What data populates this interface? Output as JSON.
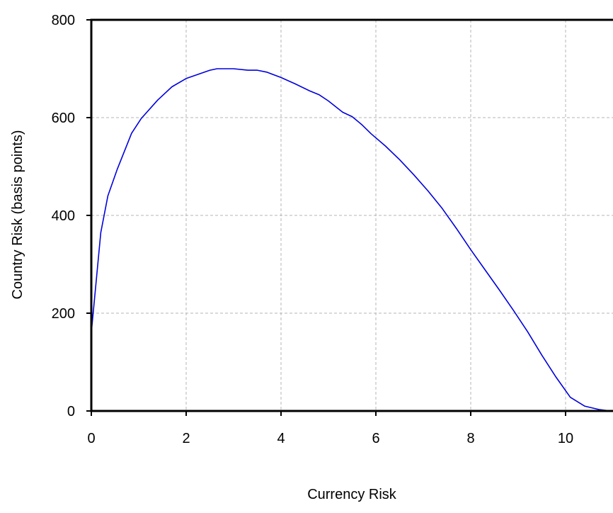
{
  "chart_data": {
    "type": "line",
    "title": "",
    "xlabel": "Currency Risk",
    "ylabel": "Country Risk (basis points)",
    "xlim": [
      0,
      11
    ],
    "ylim": [
      0,
      800
    ],
    "x_ticks": [
      0,
      2,
      4,
      6,
      8,
      10
    ],
    "y_ticks": [
      0,
      200,
      400,
      600,
      800
    ],
    "grid": true,
    "legend": "none",
    "colors": {
      "line": "#0000dd",
      "grid": "#b4b4b4",
      "axis": "#000000"
    },
    "series": [
      {
        "x": [
          0,
          0.2,
          0.35,
          0.55,
          0.85,
          1.05,
          1.4,
          1.7,
          2.0,
          2.5,
          2.65,
          3.0,
          3.3,
          3.5,
          3.7,
          4.0,
          4.3,
          4.6,
          4.8,
          5.0,
          5.3,
          5.5,
          5.7,
          5.9,
          6.2,
          6.5,
          6.8,
          7.1,
          7.4,
          7.7,
          8.0,
          8.3,
          8.6,
          8.9,
          9.2,
          9.5,
          9.8,
          10.1,
          10.4,
          10.7,
          10.95
        ],
        "y": [
          160,
          365,
          440,
          495,
          568,
          598,
          636,
          663,
          680,
          697,
          700,
          700,
          697,
          697,
          693,
          682,
          669,
          655,
          647,
          634,
          611,
          602,
          586,
          567,
          542,
          514,
          483,
          450,
          414,
          373,
          330,
          289,
          248,
          206,
          162,
          114,
          69,
          28,
          10,
          3,
          0
        ]
      }
    ]
  }
}
